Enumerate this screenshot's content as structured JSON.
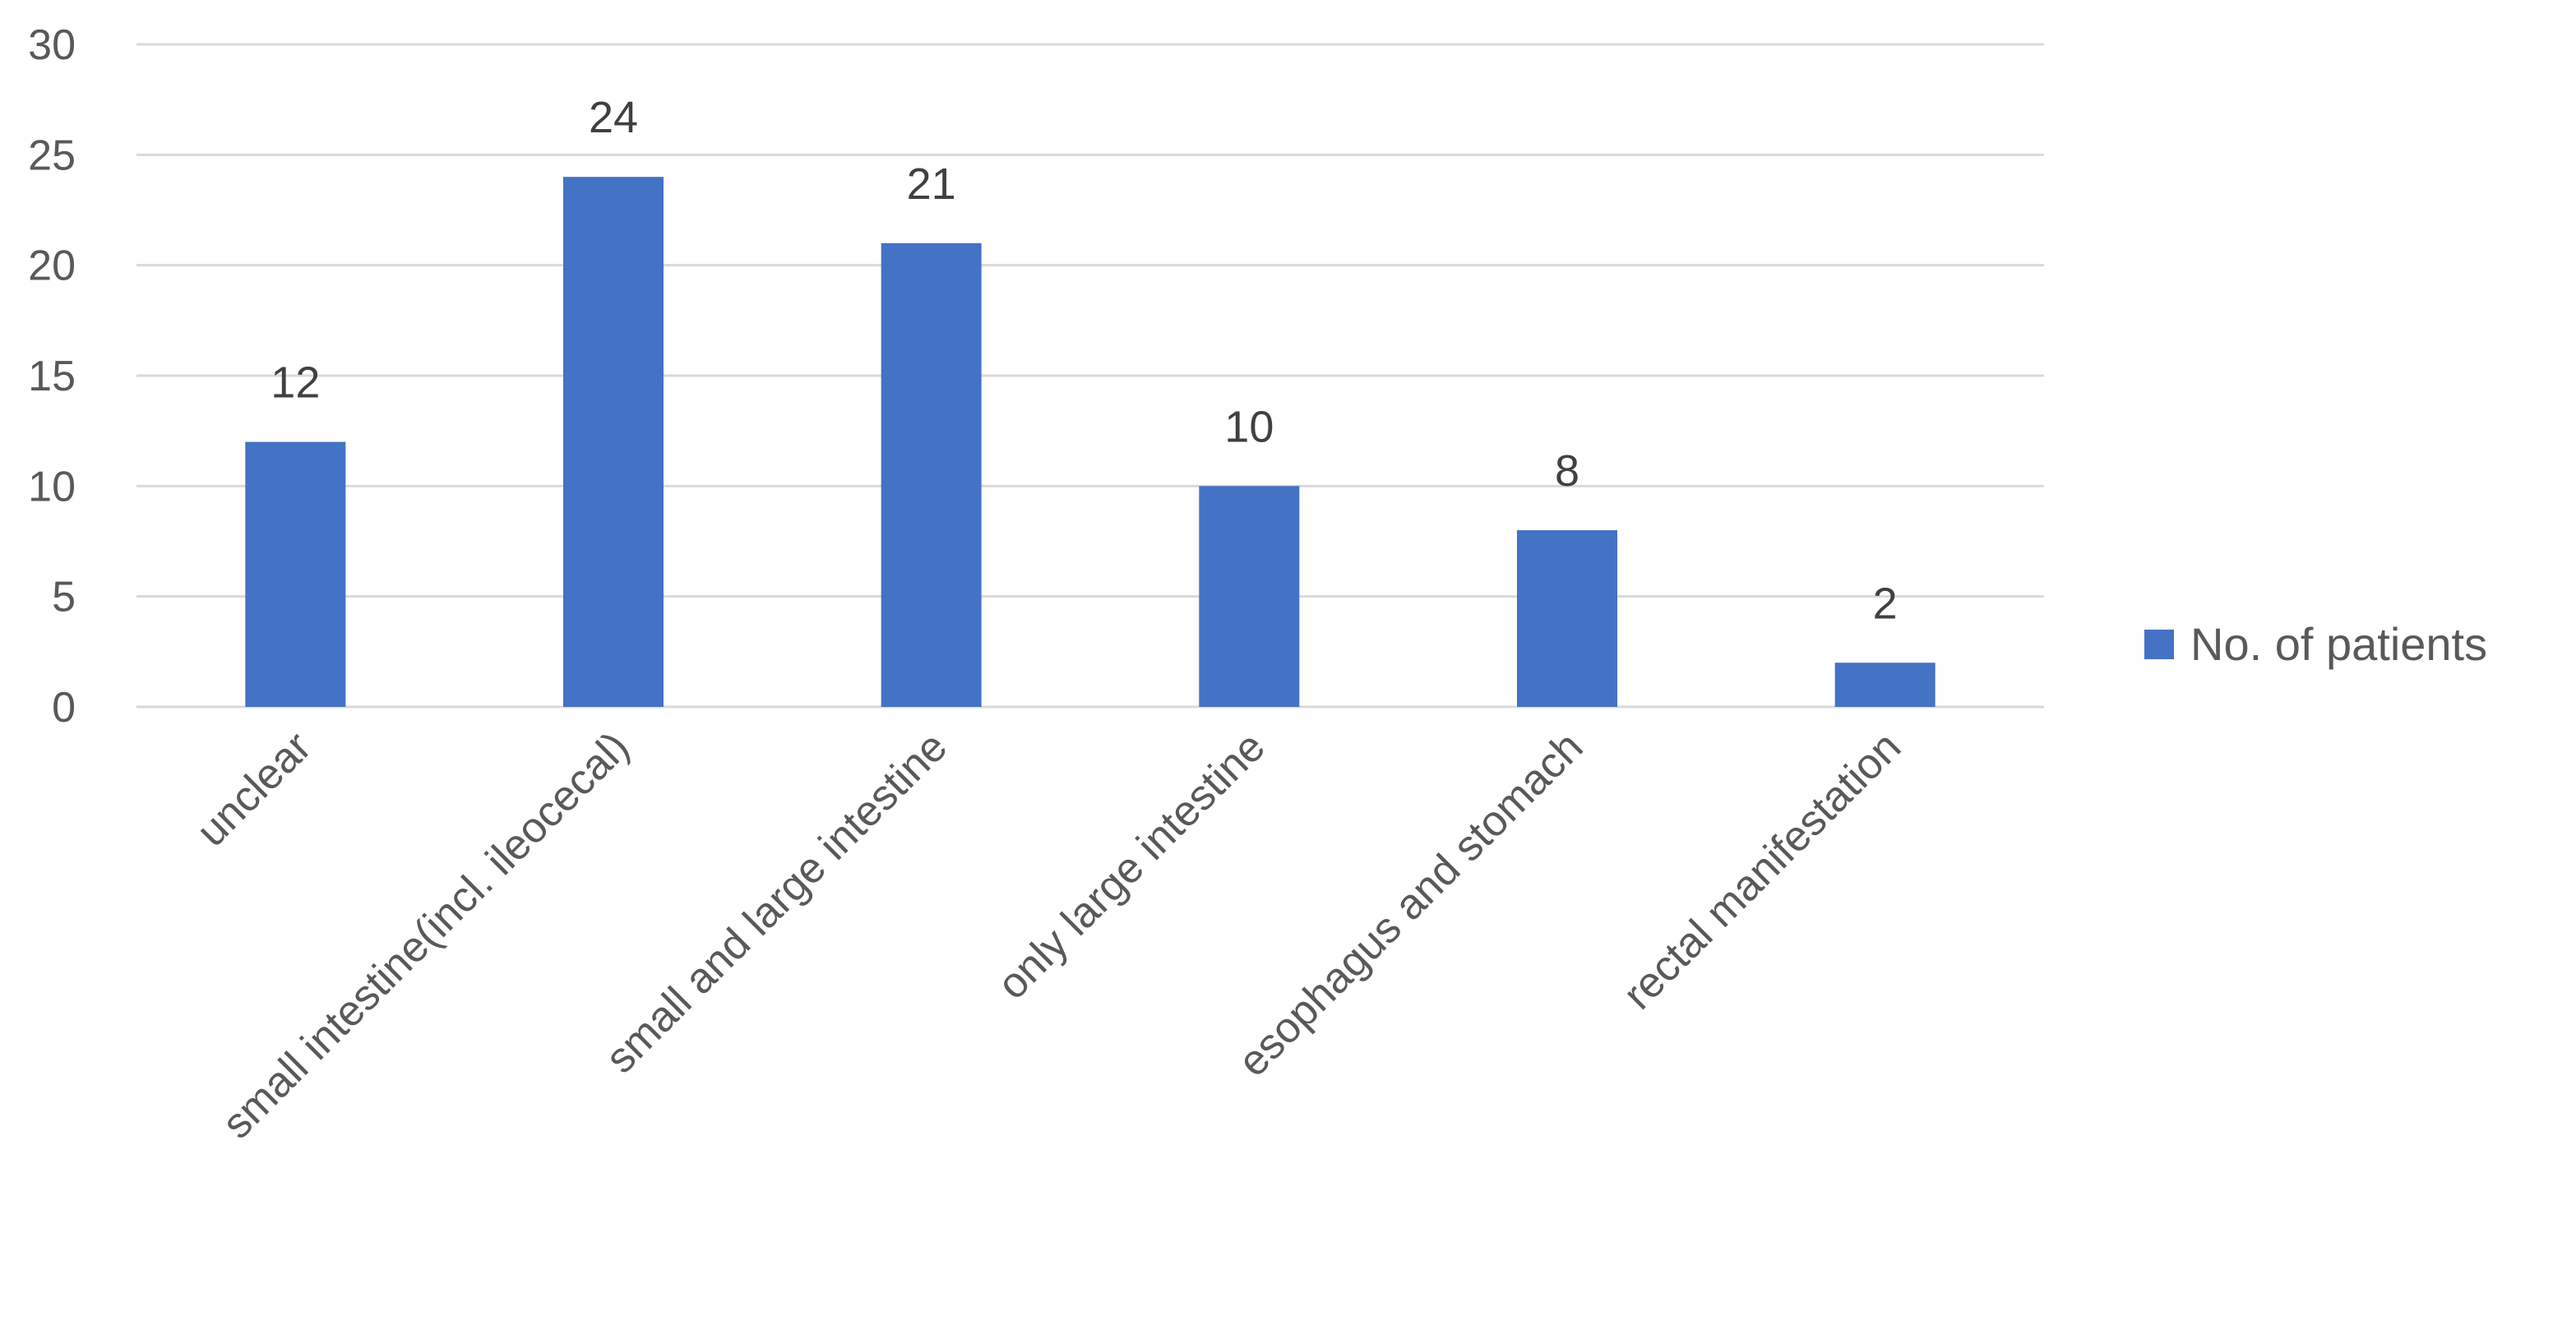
{
  "chart_data": {
    "type": "bar",
    "title": "",
    "xlabel": "",
    "ylabel": "",
    "categories": [
      "unclear",
      "small intestine(incl. ileocecal)",
      "small and large intestine",
      "only large intestine",
      "esophagus and stomach",
      "rectal manifestation"
    ],
    "series": [
      {
        "name": "No. of patients",
        "values": [
          12,
          24,
          21,
          10,
          8,
          2
        ],
        "color": "#4472c4"
      }
    ],
    "ylim": [
      0,
      30
    ],
    "yticks": [
      0,
      5,
      10,
      15,
      20,
      25,
      30
    ],
    "grid": true,
    "data_labels": true,
    "legend_position": "right"
  }
}
